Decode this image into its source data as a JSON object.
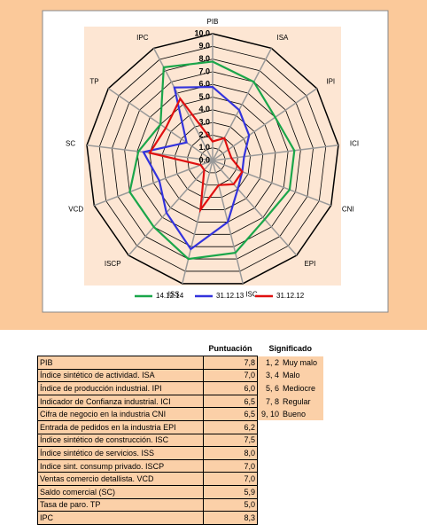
{
  "chart_data": {
    "type": "radar",
    "categories": [
      "PIB",
      "ISA",
      "IPI",
      "ICI",
      "CNI",
      "EPI",
      "ISC",
      "ISS",
      "ISCP",
      "VCD",
      "SC",
      "TP",
      "IPC"
    ],
    "series": [
      {
        "name": "14.12.14",
        "color": "#1aa64a",
        "values": [
          7.8,
          7.0,
          6.0,
          6.5,
          6.5,
          6.2,
          7.5,
          8.0,
          7.0,
          7.0,
          5.9,
          5.0,
          8.3
        ]
      },
      {
        "name": "31.12.13",
        "color": "#3333dd",
        "values": [
          5.8,
          4.5,
          3.5,
          2.5,
          2.5,
          3.0,
          5.0,
          7.2,
          5.5,
          4.5,
          5.5,
          2.5,
          6.5
        ]
      },
      {
        "name": "31.12.12",
        "color": "#e01010",
        "values": [
          1.5,
          2.0,
          1.5,
          1.5,
          2.5,
          2.5,
          2.0,
          4.0,
          1.0,
          1.0,
          5.0,
          4.5,
          5.5
        ]
      }
    ],
    "ylim": [
      0,
      10
    ],
    "yticks": [
      {
        "value": 0,
        "label": "0.0"
      },
      {
        "value": 1,
        "label": "1.0"
      },
      {
        "value": 2,
        "label": "2.0"
      },
      {
        "value": 3,
        "label": "3.0"
      },
      {
        "value": 4,
        "label": "4.0"
      },
      {
        "value": 5,
        "label": "5.0"
      },
      {
        "value": 6,
        "label": "6.0"
      },
      {
        "value": 7,
        "label": "7.0"
      },
      {
        "value": 8,
        "label": "8.0"
      },
      {
        "value": 9,
        "label": "9.0"
      },
      {
        "value": 10,
        "label": "10.0"
      }
    ],
    "grid": true
  },
  "table": {
    "header": [
      "Puntuación",
      "Significado"
    ],
    "rows": [
      [
        "PIB",
        "7,8"
      ],
      [
        "Índice sintético de actividad. ISA",
        "7,0"
      ],
      [
        "Índice de producción industrial. IPI",
        "6,0"
      ],
      [
        "Indicador de Confianza industrial. ICI",
        "6,5"
      ],
      [
        "Cifra de negocio en la industria CNI",
        "6,5"
      ],
      [
        "Entrada de pedidos en la industria EPI",
        "6,2"
      ],
      [
        "Índice sintético de construcción. ISC",
        "7,5"
      ],
      [
        "Índice sintético de servicios. ISS",
        "8,0"
      ],
      [
        "Indice sint. consump privado. ISCP",
        "7,0"
      ],
      [
        "Ventas comercio detallista. VCD",
        "7,0"
      ],
      [
        "Saldo comercial (SC)",
        "5,9"
      ],
      [
        "Tasa de paro. TP",
        "5,0"
      ],
      [
        "IPC",
        "8,3"
      ]
    ],
    "significado": [
      [
        "1, 2",
        "Muy malo"
      ],
      [
        "3, 4",
        "Malo"
      ],
      [
        "5, 6",
        "Mediocre"
      ],
      [
        "7, 8",
        "Regular"
      ],
      [
        "9, 10",
        "Bueno"
      ]
    ]
  }
}
